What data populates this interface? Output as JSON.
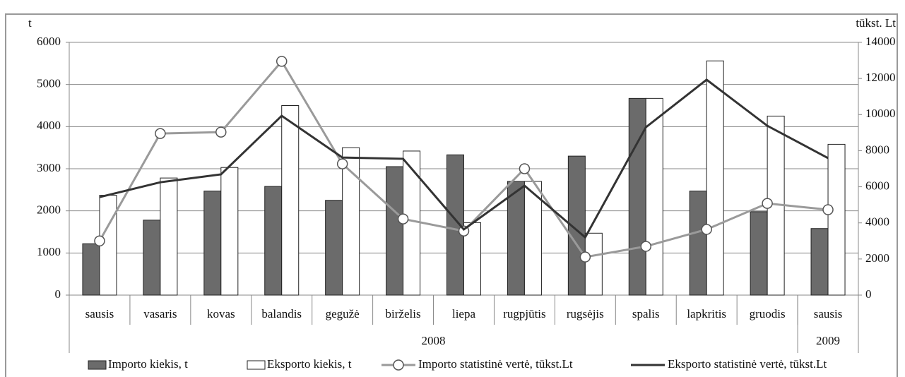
{
  "chart_data": {
    "type": "bar",
    "ylabel": "t",
    "y2label": "tūkst. Lt",
    "categories": [
      "sausis",
      "vasaris",
      "kovas",
      "balandis",
      "gegužė",
      "birželis",
      "liepa",
      "rugpjūtis",
      "rugsėjis",
      "spalis",
      "lapkritis",
      "gruodis",
      "sausis"
    ],
    "groups": [
      {
        "label": "2008",
        "span": 12
      },
      {
        "label": "2009",
        "span": 1
      }
    ],
    "series": [
      {
        "name": "Importo kiekis, t",
        "type": "bar",
        "color": "#6b6b6b",
        "values": [
          1220,
          1780,
          2470,
          2580,
          2250,
          3050,
          3330,
          2700,
          3300,
          4670,
          2470,
          1980,
          1580
        ]
      },
      {
        "name": "Eksporto kiekis, t",
        "type": "bar",
        "color": "#ffffff",
        "values": [
          2370,
          2780,
          3030,
          4500,
          3500,
          3420,
          1720,
          2700,
          1470,
          4670,
          5560,
          4250,
          3580
        ]
      },
      {
        "name": "Importo statistinė vertė, tūkst.Lt",
        "type": "line",
        "axis": "y2",
        "color": "#9a9a9a",
        "marker": "circle",
        "values": [
          3000,
          8950,
          9030,
          12950,
          7270,
          4220,
          3550,
          7000,
          2110,
          2700,
          3640,
          5080,
          4730
        ]
      },
      {
        "name": "Eksporto statistinė vertė, tūkst.Lt",
        "type": "line",
        "axis": "y2",
        "color": "#333333",
        "values": [
          5430,
          6250,
          6690,
          9930,
          7620,
          7550,
          3640,
          6060,
          3200,
          9300,
          11930,
          9380,
          7590
        ]
      }
    ],
    "ylim": [
      0,
      6000
    ],
    "yticks": [
      0,
      1000,
      2000,
      3000,
      4000,
      5000,
      6000
    ],
    "y2lim": [
      0,
      14000
    ],
    "y2ticks": [
      0,
      2000,
      4000,
      6000,
      8000,
      10000,
      12000,
      14000
    ],
    "grid": true
  }
}
